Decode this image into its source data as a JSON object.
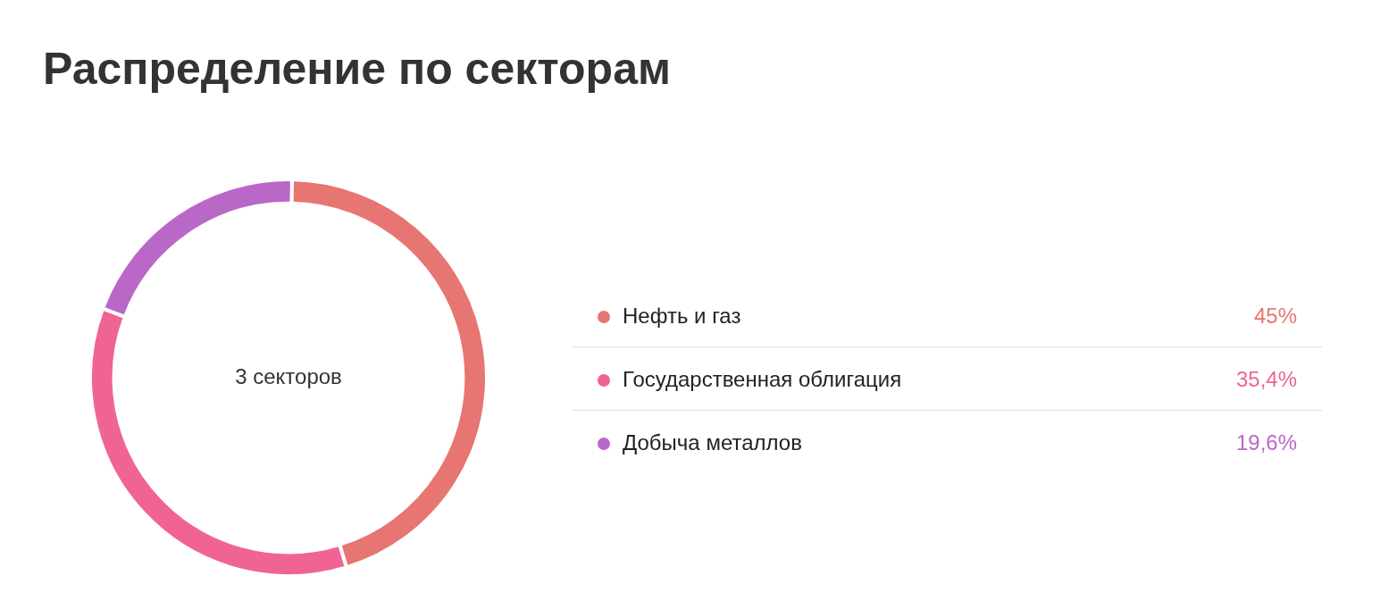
{
  "chart_data": {
    "type": "donut",
    "title": "Распределение по секторам",
    "categories": [
      "Нефть и газ",
      "Государственная облигация",
      "Добыча металлов"
    ],
    "values": [
      45,
      35.4,
      19.6
    ],
    "value_labels": [
      "45%",
      "35,4%",
      "19,6%"
    ],
    "colors": [
      "#e77571",
      "#f06493",
      "#ba68c8"
    ],
    "legend": "right",
    "annotations": [
      "3 секторов"
    ]
  }
}
